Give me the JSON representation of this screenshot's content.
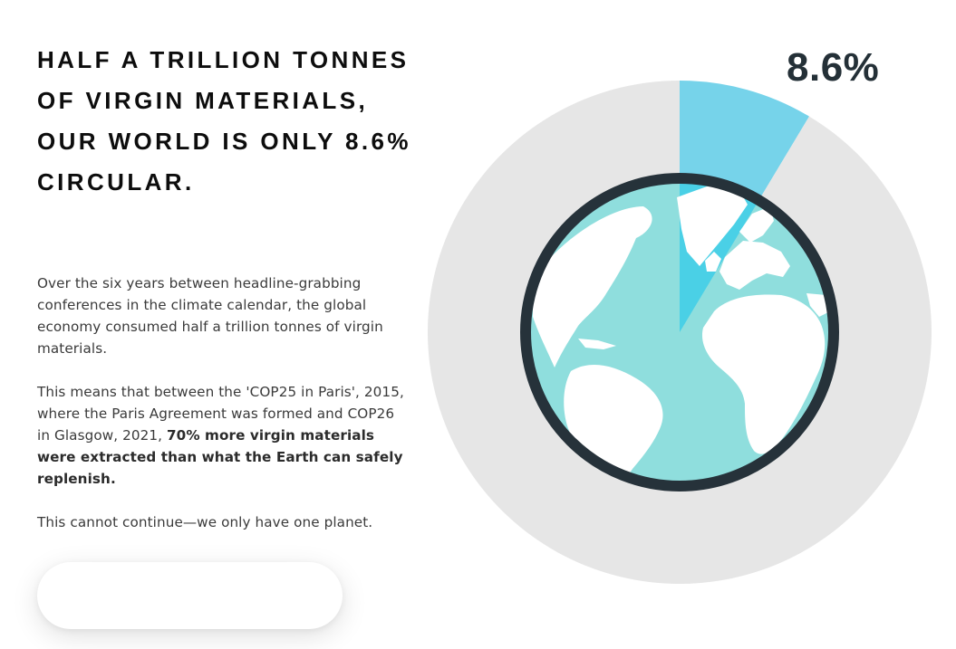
{
  "headline": "HALF A TRILLION TONNES OF VIRGIN MATERIALS, OUR WORLD IS ONLY 8.6% CIRCULAR.",
  "body": {
    "paragraph1": "Over the six years between headline-grabbing conferences in the climate calendar, the global economy consumed half a trillion tonnes of virgin materials.",
    "paragraph2_plain": "This means that between the 'COP25 in Paris', 2015, where the Paris Agreement was formed and COP26 in Glasgow, 2021, ",
    "paragraph2_bold": "70% more virgin materials were extracted than what the Earth can safely replenish.",
    "paragraph3": "This cannot continue—we only have one planet."
  },
  "cta_button": {
    "label": ""
  },
  "chart_data": {
    "type": "pie",
    "title": "",
    "value_label": "8.6%",
    "slices": [
      {
        "label": "8.6%",
        "value": 8.6,
        "color": "#76d3ea"
      },
      {
        "label": "",
        "value": 91.4,
        "color": "#e6e6e6"
      }
    ]
  },
  "colors": {
    "highlight_slice": "#76d3ea",
    "remainder_slice": "#e6e6e6",
    "globe_ocean": "#8fdedd",
    "globe_land": "#ffffff",
    "globe_highlight_ocean": "#4ad0e6",
    "globe_ring": "#26323a",
    "percent_text": "#243037"
  },
  "icons": {
    "globe": "earth-globe-icon"
  }
}
